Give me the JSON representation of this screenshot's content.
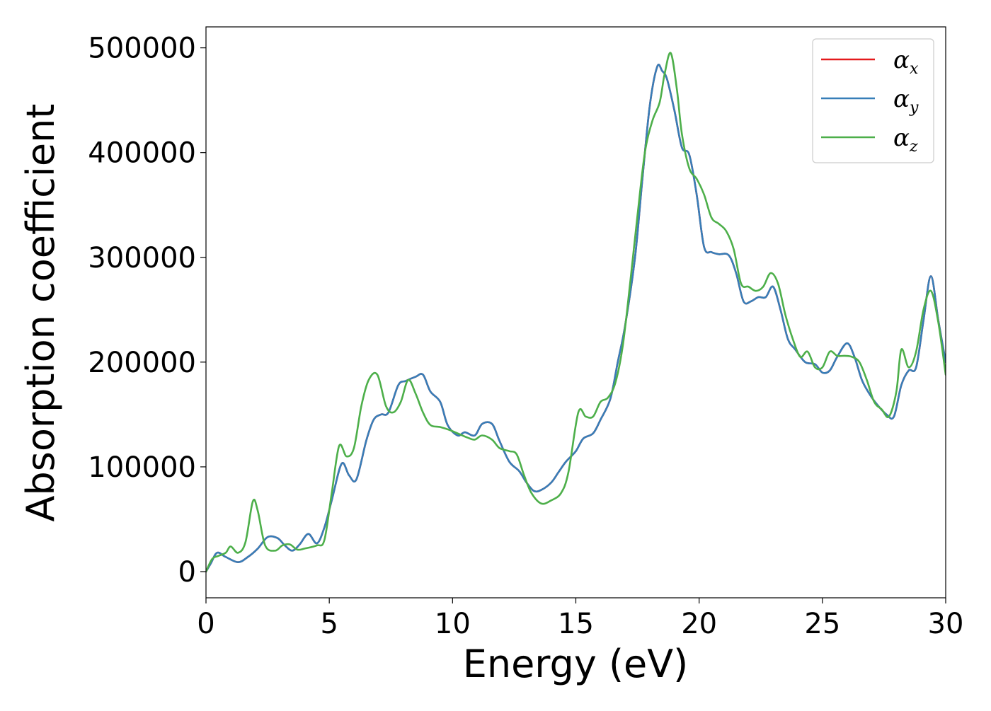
{
  "chart_data": {
    "type": "line",
    "title": "",
    "xlabel": "Energy (eV)",
    "ylabel": "Absorption coefficient",
    "xlim": [
      0,
      30
    ],
    "ylim": [
      -25000,
      520000
    ],
    "xticks": [
      0,
      5,
      10,
      15,
      20,
      25,
      30
    ],
    "yticks": [
      0,
      100000,
      200000,
      300000,
      400000,
      500000
    ],
    "grid": false,
    "legend_position": "top-right",
    "series": [
      {
        "name": "α_x",
        "legend_symbol": "α",
        "legend_sub": "x",
        "color": "#e41a1c",
        "x": [
          0,
          0.2,
          0.45,
          0.8,
          1.3,
          1.7,
          2.1,
          2.5,
          2.9,
          3.2,
          3.5,
          3.8,
          4.15,
          4.5,
          4.8,
          5.1,
          5.5,
          5.8,
          6.1,
          6.5,
          6.8,
          7.1,
          7.4,
          7.8,
          8.1,
          8.5,
          8.8,
          9.1,
          9.5,
          9.8,
          10.2,
          10.5,
          10.9,
          11.2,
          11.6,
          11.9,
          12.3,
          12.7,
          13.0,
          13.3,
          13.6,
          14.0,
          14.3,
          14.6,
          15.0,
          15.3,
          15.7,
          16.0,
          16.4,
          16.7,
          17.0,
          17.4,
          17.7,
          18.0,
          18.3,
          18.5,
          18.7,
          19.0,
          19.3,
          19.6,
          19.9,
          20.2,
          20.5,
          20.8,
          21.2,
          21.5,
          21.8,
          22.1,
          22.4,
          22.7,
          23.0,
          23.3,
          23.6,
          23.9,
          24.3,
          24.7,
          25.0,
          25.3,
          25.6,
          26.0,
          26.3,
          26.6,
          26.9,
          27.2,
          27.6,
          27.9,
          28.2,
          28.5,
          28.8,
          29.1,
          29.4,
          29.7,
          30.0
        ],
        "values": [
          0,
          8000,
          18000,
          14000,
          9000,
          14000,
          22000,
          33000,
          32000,
          25000,
          20000,
          26000,
          36000,
          27000,
          42000,
          68000,
          103000,
          92000,
          88000,
          125000,
          145000,
          150000,
          152000,
          178000,
          182000,
          186000,
          188000,
          172000,
          162000,
          140000,
          130000,
          133000,
          130000,
          141000,
          141000,
          125000,
          105000,
          96000,
          85000,
          77000,
          78000,
          85000,
          95000,
          105000,
          115000,
          127000,
          132000,
          145000,
          165000,
          200000,
          235000,
          300000,
          375000,
          445000,
          482000,
          478000,
          470000,
          440000,
          405000,
          398000,
          360000,
          310000,
          305000,
          303000,
          302000,
          285000,
          258000,
          258000,
          262000,
          262000,
          272000,
          250000,
          222000,
          212000,
          200000,
          198000,
          190000,
          192000,
          205000,
          218000,
          205000,
          183000,
          170000,
          160000,
          150000,
          148000,
          178000,
          192000,
          195000,
          240000,
          282000,
          240000,
          200000
        ]
      },
      {
        "name": "α_y",
        "legend_symbol": "α",
        "legend_sub": "y",
        "color": "#377eb8",
        "x": [
          0,
          0.2,
          0.45,
          0.8,
          1.3,
          1.7,
          2.1,
          2.5,
          2.9,
          3.2,
          3.5,
          3.8,
          4.15,
          4.5,
          4.8,
          5.1,
          5.5,
          5.8,
          6.1,
          6.5,
          6.8,
          7.1,
          7.4,
          7.8,
          8.1,
          8.5,
          8.8,
          9.1,
          9.5,
          9.8,
          10.2,
          10.5,
          10.9,
          11.2,
          11.6,
          11.9,
          12.3,
          12.7,
          13.0,
          13.3,
          13.6,
          14.0,
          14.3,
          14.6,
          15.0,
          15.3,
          15.7,
          16.0,
          16.4,
          16.7,
          17.0,
          17.4,
          17.7,
          18.0,
          18.3,
          18.5,
          18.7,
          19.0,
          19.3,
          19.6,
          19.9,
          20.2,
          20.5,
          20.8,
          21.2,
          21.5,
          21.8,
          22.1,
          22.4,
          22.7,
          23.0,
          23.3,
          23.6,
          23.9,
          24.3,
          24.7,
          25.0,
          25.3,
          25.6,
          26.0,
          26.3,
          26.6,
          26.9,
          27.2,
          27.6,
          27.9,
          28.2,
          28.5,
          28.8,
          29.1,
          29.4,
          29.7,
          30.0
        ],
        "values": [
          0,
          8000,
          18000,
          14000,
          9000,
          14000,
          22000,
          33000,
          32000,
          25000,
          20000,
          26000,
          36000,
          27000,
          42000,
          68000,
          103000,
          92000,
          88000,
          125000,
          145000,
          150000,
          152000,
          178000,
          182000,
          186000,
          188000,
          172000,
          162000,
          140000,
          130000,
          133000,
          130000,
          141000,
          141000,
          125000,
          105000,
          96000,
          85000,
          77000,
          78000,
          85000,
          95000,
          105000,
          115000,
          127000,
          132000,
          145000,
          165000,
          200000,
          235000,
          300000,
          375000,
          445000,
          482000,
          478000,
          470000,
          440000,
          405000,
          398000,
          360000,
          310000,
          305000,
          303000,
          302000,
          285000,
          258000,
          258000,
          262000,
          262000,
          272000,
          250000,
          222000,
          212000,
          200000,
          198000,
          190000,
          192000,
          205000,
          218000,
          205000,
          183000,
          170000,
          160000,
          150000,
          148000,
          178000,
          192000,
          195000,
          240000,
          282000,
          240000,
          200000
        ]
      },
      {
        "name": "α_z",
        "legend_symbol": "α",
        "legend_sub": "z",
        "color": "#4daf4a",
        "x": [
          0,
          0.25,
          0.5,
          0.8,
          1.0,
          1.3,
          1.6,
          1.9,
          2.1,
          2.4,
          2.8,
          3.1,
          3.4,
          3.7,
          4.0,
          4.5,
          4.8,
          5.1,
          5.4,
          5.7,
          6.0,
          6.3,
          6.6,
          6.95,
          7.3,
          7.6,
          7.9,
          8.2,
          8.5,
          8.8,
          9.1,
          9.5,
          9.9,
          10.3,
          10.6,
          10.9,
          11.2,
          11.6,
          11.9,
          12.3,
          12.6,
          12.9,
          13.2,
          13.6,
          14.0,
          14.4,
          14.7,
          15.1,
          15.4,
          15.7,
          16.0,
          16.3,
          16.6,
          16.9,
          17.2,
          17.5,
          17.8,
          18.1,
          18.4,
          18.6,
          18.85,
          19.1,
          19.3,
          19.6,
          19.9,
          20.2,
          20.5,
          20.8,
          21.1,
          21.4,
          21.7,
          22.0,
          22.3,
          22.6,
          22.9,
          23.2,
          23.5,
          23.8,
          24.1,
          24.4,
          24.7,
          25.0,
          25.3,
          25.6,
          25.9,
          26.2,
          26.5,
          26.8,
          27.1,
          27.4,
          27.7,
          28.0,
          28.2,
          28.5,
          28.8,
          29.1,
          29.4,
          29.7,
          30.0
        ],
        "values": [
          0,
          12000,
          15000,
          18000,
          24000,
          18000,
          28000,
          67000,
          58000,
          25000,
          20000,
          25000,
          26000,
          21000,
          22000,
          25000,
          30000,
          75000,
          120000,
          110000,
          118000,
          158000,
          183000,
          188000,
          158000,
          152000,
          162000,
          183000,
          170000,
          152000,
          140000,
          138000,
          135000,
          131000,
          128000,
          126000,
          130000,
          126000,
          118000,
          115000,
          112000,
          92000,
          75000,
          65000,
          68000,
          75000,
          95000,
          152000,
          148000,
          148000,
          162000,
          166000,
          180000,
          215000,
          275000,
          340000,
          400000,
          430000,
          448000,
          475000,
          495000,
          460000,
          418000,
          385000,
          375000,
          360000,
          338000,
          332000,
          325000,
          308000,
          275000,
          272000,
          268000,
          272000,
          285000,
          275000,
          245000,
          222000,
          205000,
          210000,
          195000,
          195000,
          210000,
          206000,
          206000,
          205000,
          200000,
          183000,
          162000,
          155000,
          148000,
          172000,
          212000,
          195000,
          210000,
          250000,
          268000,
          238000,
          188000
        ]
      }
    ]
  }
}
